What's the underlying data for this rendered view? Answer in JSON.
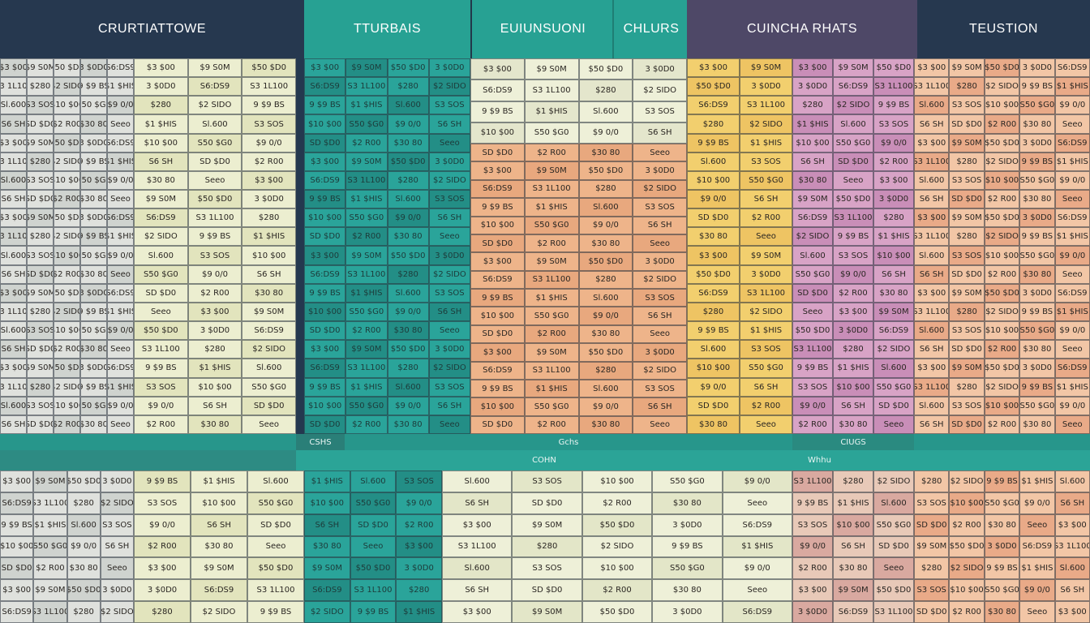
{
  "headers": [
    "CRURTIATTOWE",
    "TTURBAIS",
    "EUIUNSUONI",
    "CHLURS",
    "CUINCHA RHATS",
    "TEUSTION"
  ],
  "bands": [
    "CSHS",
    "Gchs",
    "COHN",
    "CIUGS",
    "Whhu"
  ],
  "grid_texts": [
    "$3 $00",
    "$9 S0M",
    "$50 $D0",
    "3 $0D0",
    "S6:DS9",
    "S3 1L100",
    "$280",
    "$2 SIDO",
    "9 $9 BS",
    "$1 $HIS",
    "Sl.600",
    "S3 SOS",
    "$10 $00",
    "S50 $G0",
    "$9 0/0",
    "S6 SH",
    "SD $D0",
    "$2 R00",
    "$30 80",
    "Seeo"
  ]
}
